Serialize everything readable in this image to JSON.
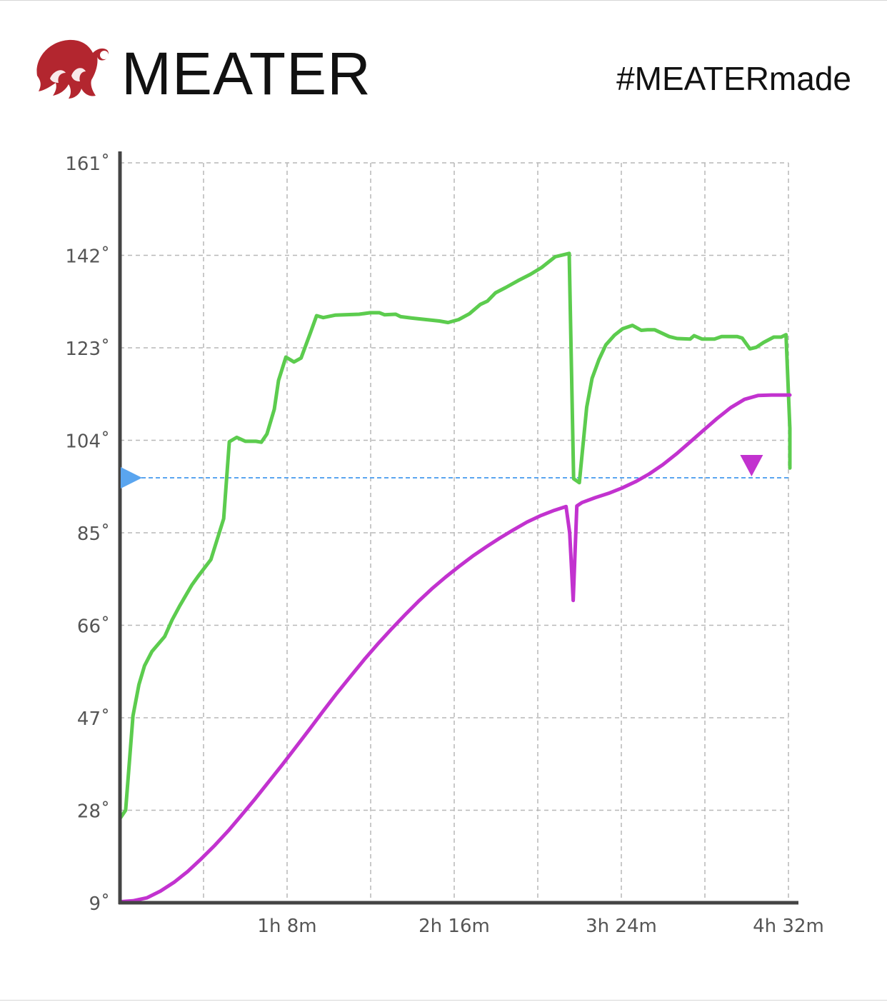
{
  "header": {
    "brand": "MEATER",
    "hashtag": "#MEATERmade",
    "logo_icon": "meater-flame-logo-icon"
  },
  "colors": {
    "ambient": "#5ccc4e",
    "internal": "#c232cf",
    "target": "#5aa5ef",
    "axis": "#444444",
    "grid": "#b7b7b7",
    "logo": "#b3262f"
  },
  "chart_data": {
    "type": "line",
    "title": "",
    "xlabel": "",
    "ylabel": "",
    "x_unit": "minutes",
    "xlim": [
      0,
      272
    ],
    "ylim": [
      9,
      161
    ],
    "y_ticks": [
      9,
      28,
      47,
      66,
      85,
      104,
      123,
      142,
      161
    ],
    "y_tick_labels": [
      "9˚",
      "28˚",
      "47˚",
      "66˚",
      "85˚",
      "104˚",
      "123˚",
      "142˚",
      "161˚"
    ],
    "x_ticks": [
      68,
      136,
      204,
      272
    ],
    "x_tick_labels": [
      "1h 8m",
      "2h 16m",
      "3h 24m",
      "4h 32m"
    ],
    "x_gridlines": [
      0,
      34,
      68,
      102,
      136,
      170,
      204,
      238,
      272
    ],
    "grid": true,
    "target_temperature": 96.3,
    "markers": [
      {
        "name": "target-marker",
        "shape": "right-triangle",
        "y": 96.3
      },
      {
        "name": "peak-marker",
        "shape": "down-triangle",
        "x": 257,
        "y": 101
      }
    ],
    "series": [
      {
        "key": "ambient",
        "color": "#5ccc4e",
        "points": [
          [
            0,
            26.3
          ],
          [
            2.3,
            28.0
          ],
          [
            5.3,
            47.4
          ],
          [
            7.7,
            53.8
          ],
          [
            10.0,
            57.7
          ],
          [
            13.0,
            60.6
          ],
          [
            18.2,
            63.7
          ],
          [
            21.2,
            67.1
          ],
          [
            24.2,
            69.9
          ],
          [
            29.3,
            74.3
          ],
          [
            31.7,
            76.0
          ],
          [
            37.0,
            79.5
          ],
          [
            42.2,
            87.9
          ],
          [
            44.5,
            103.7
          ],
          [
            47.5,
            104.6
          ],
          [
            51.0,
            103.8
          ],
          [
            55.3,
            103.8
          ],
          [
            57.5,
            103.6
          ],
          [
            59.8,
            105.3
          ],
          [
            62.8,
            110.4
          ],
          [
            64.5,
            116.3
          ],
          [
            67.5,
            121.1
          ],
          [
            70.8,
            120.1
          ],
          [
            73.7,
            120.9
          ],
          [
            77.5,
            126.1
          ],
          [
            80.0,
            129.6
          ],
          [
            82.7,
            129.2
          ],
          [
            87.5,
            129.7
          ],
          [
            97.3,
            129.9
          ],
          [
            101.8,
            130.2
          ],
          [
            105.6,
            130.2
          ],
          [
            107.6,
            129.8
          ],
          [
            112.2,
            129.9
          ],
          [
            114.2,
            129.4
          ],
          [
            118.8,
            129.1
          ],
          [
            130.0,
            128.5
          ],
          [
            133.5,
            128.2
          ],
          [
            137.8,
            128.8
          ],
          [
            142.2,
            130.0
          ],
          [
            146.6,
            131.9
          ],
          [
            149.5,
            132.6
          ],
          [
            152.8,
            134.3
          ],
          [
            157.0,
            135.4
          ],
          [
            162.0,
            136.8
          ],
          [
            167.0,
            138.1
          ],
          [
            171.6,
            139.5
          ],
          [
            177.1,
            141.7
          ],
          [
            182.8,
            142.4
          ],
          [
            184.6,
            96.1
          ],
          [
            186.9,
            95.3
          ],
          [
            189.9,
            110.8
          ],
          [
            192.1,
            116.7
          ],
          [
            194.9,
            120.6
          ],
          [
            197.7,
            123.6
          ],
          [
            201.2,
            125.6
          ],
          [
            204.5,
            126.9
          ],
          [
            208.5,
            127.6
          ],
          [
            212.1,
            126.6
          ],
          [
            214.6,
            126.7
          ],
          [
            217.6,
            126.7
          ],
          [
            223.5,
            125.3
          ],
          [
            226.7,
            124.9
          ],
          [
            232.0,
            124.8
          ],
          [
            233.6,
            125.5
          ],
          [
            236.8,
            124.8
          ],
          [
            241.9,
            124.8
          ],
          [
            244.8,
            125.3
          ],
          [
            251.2,
            125.3
          ],
          [
            253.2,
            125.0
          ],
          [
            256.3,
            122.8
          ],
          [
            258.9,
            123.1
          ],
          [
            261.9,
            124.1
          ],
          [
            266.0,
            125.2
          ],
          [
            269.0,
            125.2
          ],
          [
            271.0,
            125.7
          ],
          [
            273.7,
            106.4
          ],
          [
            277.6,
            98.3
          ]
        ]
      },
      {
        "key": "internal",
        "color": "#c232cf",
        "points": [
          [
            0,
            9.2
          ],
          [
            5.3,
            9.4
          ],
          [
            10.9,
            10.0
          ],
          [
            16.5,
            11.4
          ],
          [
            22.0,
            13.2
          ],
          [
            27.5,
            15.4
          ],
          [
            33.0,
            18.0
          ],
          [
            38.6,
            20.8
          ],
          [
            44.1,
            23.8
          ],
          [
            49.5,
            27.0
          ],
          [
            55.1,
            30.4
          ],
          [
            60.6,
            33.9
          ],
          [
            66.1,
            37.4
          ],
          [
            71.6,
            41.0
          ],
          [
            77.2,
            44.7
          ],
          [
            82.7,
            48.4
          ],
          [
            88.2,
            52.0
          ],
          [
            93.8,
            55.5
          ],
          [
            99.3,
            58.9
          ],
          [
            104.8,
            62.1
          ],
          [
            110.4,
            65.2
          ],
          [
            115.9,
            68.1
          ],
          [
            121.4,
            70.9
          ],
          [
            126.9,
            73.5
          ],
          [
            132.5,
            75.9
          ],
          [
            138.0,
            78.1
          ],
          [
            143.5,
            80.2
          ],
          [
            149.0,
            82.1
          ],
          [
            154.5,
            83.9
          ],
          [
            160.1,
            85.6
          ],
          [
            165.6,
            87.2
          ],
          [
            171.1,
            88.5
          ],
          [
            176.7,
            89.6
          ],
          [
            181.5,
            90.4
          ],
          [
            183.0,
            85.0
          ],
          [
            184.4,
            71.1
          ],
          [
            185.9,
            90.5
          ],
          [
            188.0,
            91.2
          ],
          [
            193.3,
            92.2
          ],
          [
            198.8,
            93.1
          ],
          [
            204.3,
            94.2
          ],
          [
            209.8,
            95.5
          ],
          [
            215.4,
            97.1
          ],
          [
            220.9,
            99.0
          ],
          [
            226.4,
            101.2
          ],
          [
            231.9,
            103.6
          ],
          [
            237.5,
            106.1
          ],
          [
            243.0,
            108.5
          ],
          [
            248.5,
            110.7
          ],
          [
            254.1,
            112.4
          ],
          [
            259.6,
            113.2
          ],
          [
            265.1,
            113.3
          ],
          [
            270.6,
            113.3
          ],
          [
            276.1,
            113.3
          ],
          [
            281.5,
            113.3
          ],
          [
            287.0,
            113.3
          ],
          [
            292.6,
            113.3
          ]
        ]
      }
    ]
  }
}
